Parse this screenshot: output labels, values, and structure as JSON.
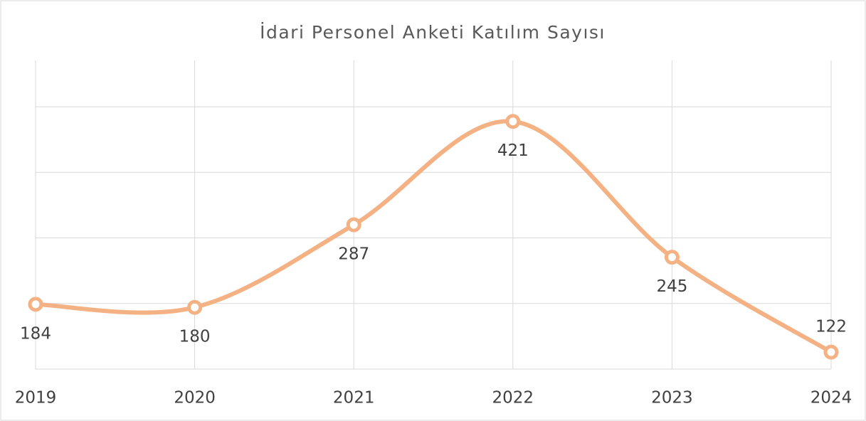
{
  "chart_data": {
    "type": "line",
    "title": "İdari Personel Anketi Katılım Sayısı",
    "categories": [
      "2019",
      "2020",
      "2021",
      "2022",
      "2023",
      "2024"
    ],
    "series": [
      {
        "name": "Katılım",
        "color": "#f4b183",
        "values": [
          184,
          180,
          287,
          421,
          245,
          122
        ]
      }
    ],
    "ylim": [
      100,
      500
    ],
    "yticks": [
      100,
      185,
      270,
      355,
      440
    ],
    "grid": true,
    "smooth": true
  }
}
